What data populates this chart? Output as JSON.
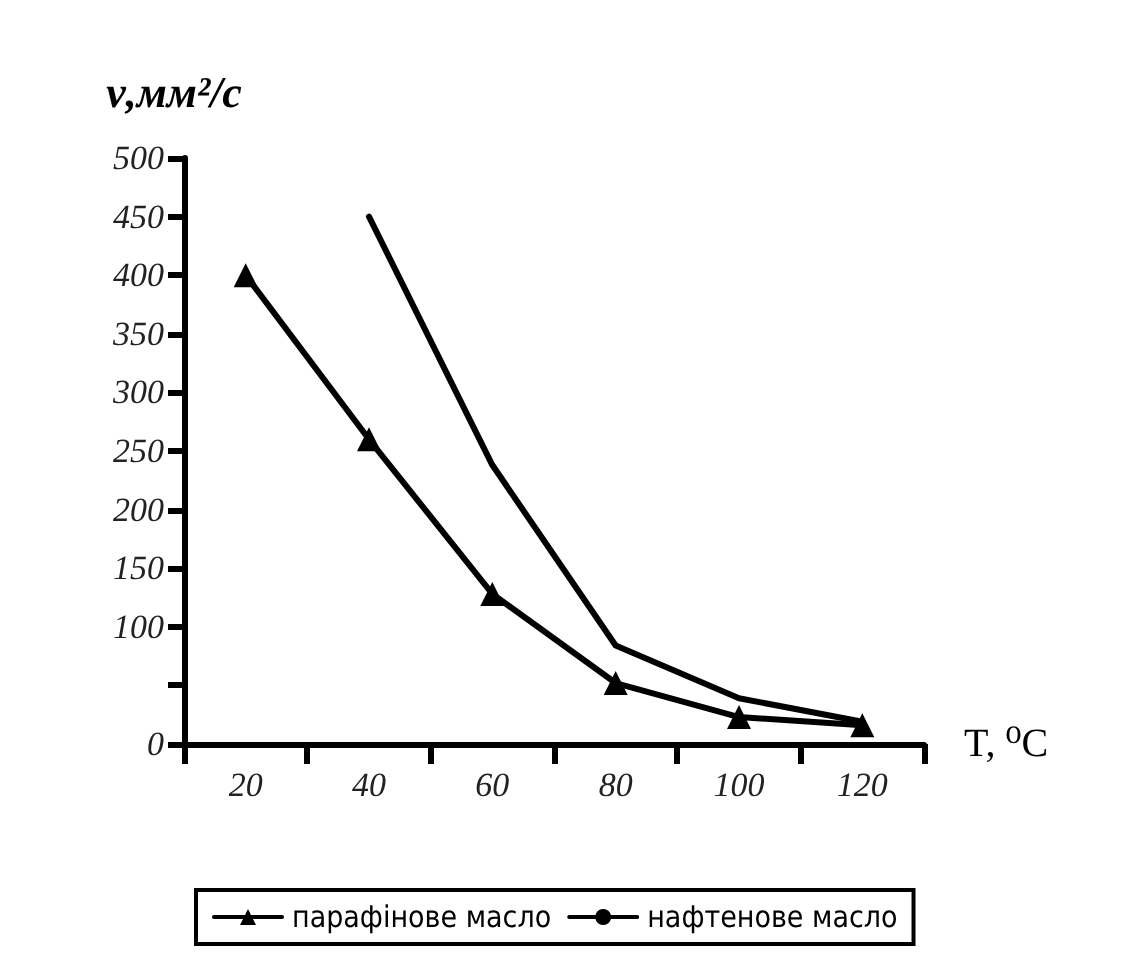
{
  "chart_data": {
    "type": "line",
    "ylabel": "ν,мм²/с",
    "xlabel": "T, ⁰C",
    "categories": [
      "20",
      "40",
      "60",
      "80",
      "100",
      "120"
    ],
    "series": [
      {
        "name": "парафінове масло",
        "color": "#000000",
        "marker": "triangle",
        "values": [
          400,
          260,
          128,
          52,
          23,
          16
        ]
      },
      {
        "name": "нафтенове масло",
        "color": "#000000",
        "marker": "none",
        "values": [
          null,
          450,
          238,
          84,
          39,
          19
        ]
      }
    ],
    "ylim": [
      0,
      500
    ],
    "yticks": [
      0,
      {
        "value": 50,
        "label": null
      },
      100,
      150,
      200,
      250,
      300,
      350,
      400,
      450,
      500
    ],
    "grid": false,
    "legend": "bottom",
    "line_style": "solid"
  }
}
